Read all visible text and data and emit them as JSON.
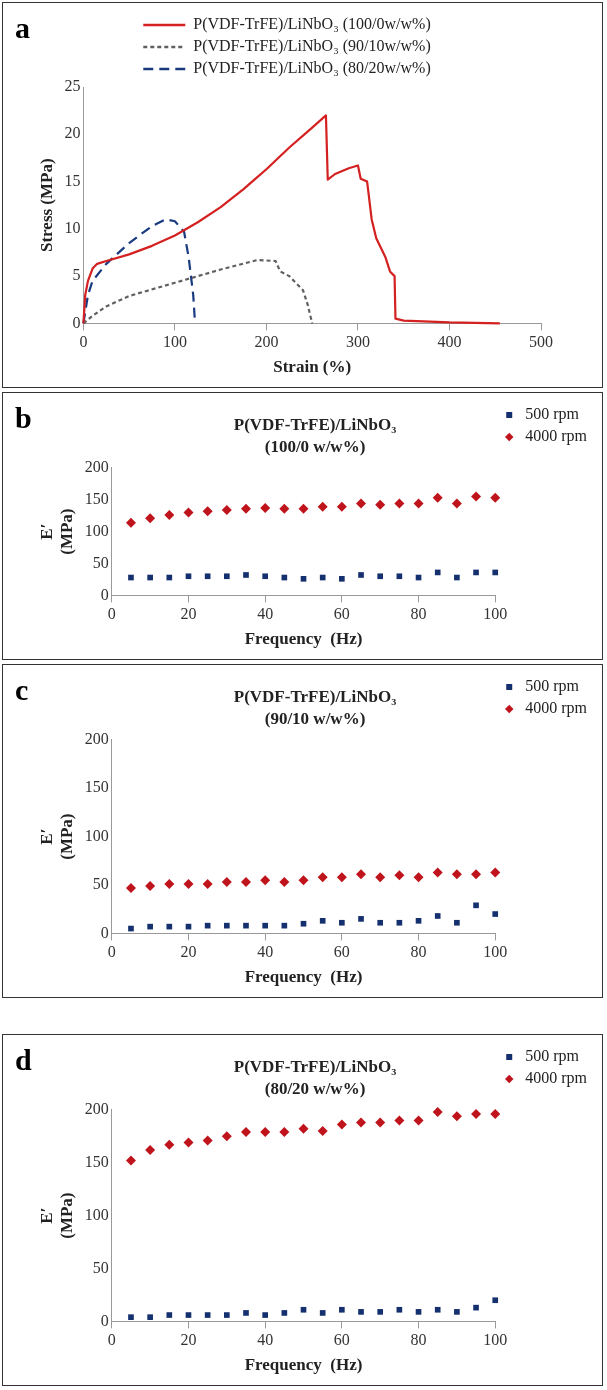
{
  "chart_data": [
    {
      "type": "line",
      "xlabel": "Strain (%)",
      "ylabel": "Stress (MPa)",
      "annotations": [
        "a"
      ],
      "xlim": [
        0,
        500
      ],
      "ylim": [
        0,
        25
      ],
      "xticks": [
        0,
        100,
        200,
        300,
        400,
        500
      ],
      "yticks": [
        0,
        5,
        10,
        15,
        20,
        25
      ],
      "grid": false,
      "legend": "top",
      "marker": "none",
      "series": [
        {
          "name": "P(VDF-TrFE)/LiNbO₃ (100/0w/w%)",
          "color": "#d42020",
          "line_style": "solid",
          "x": [
            0,
            2,
            5,
            10,
            15,
            25,
            50,
            75,
            100,
            125,
            150,
            175,
            200,
            225,
            250,
            265,
            267,
            275,
            290,
            300,
            303,
            310,
            315,
            320,
            330,
            335,
            340,
            341,
            350,
            400,
            455
          ],
          "values": [
            0,
            3,
            4.5,
            5.8,
            6.3,
            6.6,
            7.3,
            8.2,
            9.3,
            10.7,
            12.3,
            14.2,
            16.3,
            18.6,
            20.7,
            22,
            15.2,
            15.8,
            16.4,
            16.7,
            15.3,
            15,
            11,
            9,
            7,
            5.5,
            5,
            0.5,
            0.3,
            0.1,
            0
          ]
        },
        {
          "name": "P(VDF-TrFE)/LiNbO₃ (90/10w/w%)",
          "color": "#606060",
          "line_style": "dotted",
          "x": [
            0,
            10,
            25,
            50,
            100,
            150,
            190,
            210,
            215,
            225,
            240,
            245,
            250
          ],
          "values": [
            0,
            0.8,
            1.8,
            2.9,
            4.3,
            5.7,
            6.7,
            6.6,
            5.5,
            5,
            3.5,
            2,
            0
          ]
        },
        {
          "name": "P(VDF-TrFE)/LiNbO₃ (80/20w/w%)",
          "color": "#1a3a80",
          "line_style": "dashed",
          "x": [
            0,
            5,
            10,
            25,
            50,
            75,
            90,
            100,
            110,
            115,
            120,
            122
          ],
          "values": [
            0,
            3,
            4.5,
            6.3,
            8.5,
            10.3,
            11,
            10.8,
            9.7,
            7,
            3,
            0
          ]
        }
      ]
    },
    {
      "type": "scatter",
      "title": "P(VDF-TrFE)/LiNbO₃",
      "subtitle": "(100/0 w/w%)",
      "xlabel": "Frequency  (Hz)",
      "ylabel": "E′\n(MPa)",
      "annotations": [
        "b"
      ],
      "xlim": [
        0,
        100
      ],
      "ylim": [
        0,
        200
      ],
      "xticks": [
        0,
        20,
        40,
        60,
        80,
        100
      ],
      "yticks": [
        0,
        50,
        100,
        150,
        200
      ],
      "grid": false,
      "legend": "top right",
      "x": [
        5,
        10,
        15,
        20,
        25,
        30,
        35,
        40,
        45,
        50,
        55,
        60,
        65,
        70,
        75,
        80,
        85,
        90,
        95,
        100
      ],
      "series": [
        {
          "name": "500 rpm",
          "color": "#15306e",
          "marker": "square",
          "values": [
            28,
            28,
            28,
            30,
            30,
            30,
            32,
            30,
            28,
            26,
            28,
            26,
            32,
            30,
            30,
            28,
            36,
            28,
            36,
            36
          ]
        },
        {
          "name": "4000 rpm",
          "color": "#c0141c",
          "marker": "diamond",
          "values": [
            114,
            121,
            126,
            130,
            132,
            134,
            136,
            137,
            136,
            136,
            139,
            139,
            144,
            142,
            144,
            144,
            153,
            144,
            155,
            153
          ]
        }
      ]
    },
    {
      "type": "scatter",
      "title": "P(VDF-TrFE)/LiNbO₃",
      "subtitle": "(90/10 w/w%)",
      "xlabel": "Frequency  (Hz)",
      "ylabel": "E′\n(MPa)",
      "annotations": [
        "c"
      ],
      "xlim": [
        0,
        100
      ],
      "ylim": [
        0,
        200
      ],
      "xticks": [
        0,
        20,
        40,
        60,
        80,
        100
      ],
      "yticks": [
        0,
        50,
        100,
        150,
        200
      ],
      "grid": false,
      "legend": "top right",
      "x": [
        5,
        10,
        15,
        20,
        25,
        30,
        35,
        40,
        45,
        50,
        55,
        60,
        65,
        70,
        75,
        80,
        85,
        90,
        95,
        100
      ],
      "series": [
        {
          "name": "500 rpm",
          "color": "#15306e",
          "marker": "square",
          "values": [
            5,
            7,
            7,
            7,
            8,
            8,
            8,
            8,
            8,
            10,
            13,
            11,
            15,
            11,
            11,
            13,
            18,
            11,
            29,
            20
          ]
        },
        {
          "name": "4000 rpm",
          "color": "#c0141c",
          "marker": "diamond",
          "values": [
            47,
            49,
            51,
            51,
            51,
            53,
            53,
            55,
            53,
            55,
            58,
            58,
            61,
            58,
            60,
            58,
            63,
            61,
            61,
            63
          ]
        }
      ]
    },
    {
      "type": "scatter",
      "title": "P(VDF-TrFE)/LiNbO₃",
      "subtitle": "(80/20 w/w%)",
      "xlabel": "Frequency  (Hz)",
      "ylabel": "E′\n(MPa)",
      "annotations": [
        "d"
      ],
      "xlim": [
        0,
        100
      ],
      "ylim": [
        0,
        200
      ],
      "xticks": [
        0,
        20,
        40,
        60,
        80,
        100
      ],
      "yticks": [
        0,
        50,
        100,
        150,
        200
      ],
      "grid": false,
      "legend": "top right",
      "x": [
        5,
        10,
        15,
        20,
        25,
        30,
        35,
        40,
        45,
        50,
        55,
        60,
        65,
        70,
        75,
        80,
        85,
        90,
        95,
        100
      ],
      "series": [
        {
          "name": "500 rpm",
          "color": "#15306e",
          "marker": "square",
          "values": [
            4,
            4,
            6,
            6,
            6,
            6,
            8,
            6,
            8,
            11,
            8,
            11,
            9,
            9,
            11,
            9,
            11,
            9,
            13,
            20
          ]
        },
        {
          "name": "4000 rpm",
          "color": "#c0141c",
          "marker": "diamond",
          "values": [
            152,
            162,
            167,
            169,
            171,
            175,
            179,
            179,
            179,
            182,
            180,
            186,
            188,
            188,
            190,
            190,
            198,
            194,
            196,
            196
          ]
        }
      ]
    }
  ]
}
